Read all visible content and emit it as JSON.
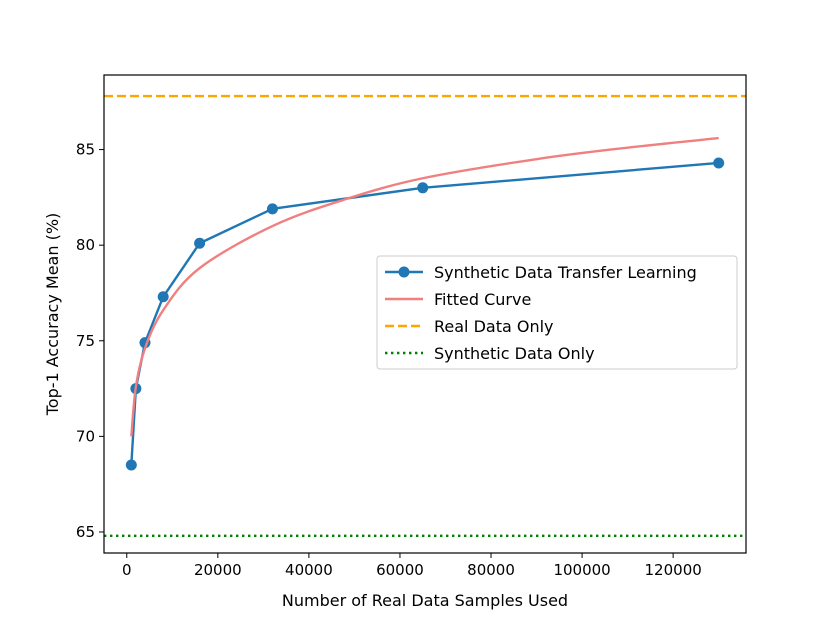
{
  "chart_data": {
    "type": "line",
    "title": "",
    "xlabel": "Number of Real Data Samples Used",
    "ylabel": "Top-1 Accuracy Mean (%)",
    "xlim": [
      -5000,
      136000
    ],
    "ylim": [
      63.9,
      88.9
    ],
    "xticks": [
      0,
      20000,
      40000,
      60000,
      80000,
      100000,
      120000
    ],
    "yticks": [
      65,
      70,
      75,
      80,
      85
    ],
    "grid": false,
    "legend_position": "center-right",
    "series": [
      {
        "name": "Synthetic Data Transfer Learning",
        "kind": "line-marker",
        "color": "#1f77b4",
        "x": [
          1000,
          2000,
          4000,
          8000,
          16000,
          32000,
          65000,
          130000
        ],
        "y": [
          68.5,
          72.5,
          74.9,
          77.3,
          80.1,
          81.9,
          83.0,
          84.3
        ]
      },
      {
        "name": "Fitted Curve",
        "kind": "smooth-line",
        "color": "#f08080",
        "x": [
          1000,
          2000,
          4000,
          8000,
          16000,
          32000,
          48000,
          65000,
          90000,
          110000,
          130000
        ],
        "y": [
          70.0,
          72.6,
          74.6,
          76.6,
          78.8,
          81.0,
          82.4,
          83.5,
          84.5,
          85.1,
          85.6
        ]
      },
      {
        "name": "Real Data Only",
        "kind": "hline-dashed",
        "color": "#ffa500",
        "y": 87.8
      },
      {
        "name": "Synthetic Data Only",
        "kind": "hline-dotted",
        "color": "#008000",
        "y": 64.8
      }
    ]
  }
}
